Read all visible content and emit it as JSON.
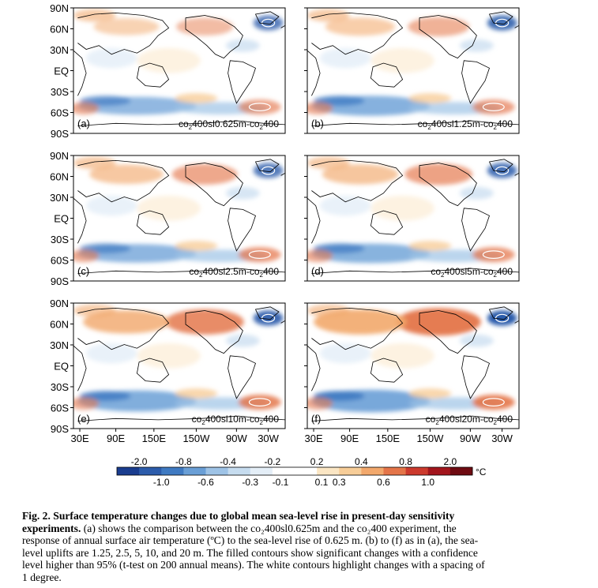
{
  "figure": {
    "lat_labels": [
      "90N",
      "60N",
      "30N",
      "EQ",
      "30S",
      "60S",
      "90S"
    ],
    "lon_labels": [
      "30E",
      "90E",
      "150E",
      "150W",
      "90W",
      "30W"
    ],
    "panels": [
      {
        "label": "(a)",
        "title_parts": [
          "co",
          "2",
          "400sl0.625m-co",
          "2",
          "400"
        ],
        "warm": 0.35,
        "cold": 0.55
      },
      {
        "label": "(b)",
        "title_parts": [
          "co",
          "2",
          "400sl1.25m-co",
          "2",
          "400"
        ],
        "warm": 0.45,
        "cold": 0.75
      },
      {
        "label": "(c)",
        "title_parts": [
          "co",
          "2",
          "400sl2.5m-co",
          "2",
          "400"
        ],
        "warm": 0.55,
        "cold": 0.6
      },
      {
        "label": "(d)",
        "title_parts": [
          "co",
          "2",
          "400sl5m-co",
          "2",
          "400"
        ],
        "warm": 0.6,
        "cold": 0.7
      },
      {
        "label": "(e)",
        "title_parts": [
          "co",
          "2",
          "400sl10m-co",
          "2",
          "400"
        ],
        "warm": 0.85,
        "cold": 0.85
      },
      {
        "label": "(f)",
        "title_parts": [
          "co",
          "2",
          "400sl20m-co",
          "2",
          "400"
        ],
        "warm": 1.0,
        "cold": 1.0
      }
    ],
    "colorbar": {
      "unit": "°C",
      "colors": [
        "#1a3d8f",
        "#2c5cab",
        "#3f7ac2",
        "#6a9fd6",
        "#9ec3e6",
        "#c6dcef",
        "#e4eef7",
        "#ffffff",
        "#ffffff",
        "#fbe6c4",
        "#f7cd98",
        "#f2a86c",
        "#e47549",
        "#cc3a2d",
        "#a3161d",
        "#6f0b12"
      ],
      "top_labels": [
        "-2.0",
        "-0.8",
        "-0.4",
        "-0.2",
        "0.2",
        "0.4",
        "0.8",
        "2.0"
      ],
      "bottom_labels": [
        "-1.0",
        "-0.6",
        "-0.3",
        "-0.1",
        "0.1",
        "0.3",
        "0.6",
        "1.0"
      ]
    }
  },
  "caption": {
    "bold_lines": [
      "Fig. 2. Surface temperature changes due to global mean sea-level rise in present-day sensitivity",
      "experiments."
    ],
    "lines": [
      "(a) shows the comparison between the co₂400sl0.625m and the co₂400 experiment, the",
      "response of annual surface air temperature (ºC) to the sea-level rise of 0.625 m. (b) to (f) as in (a), the sea-",
      "level uplifts are 1.25, 2.5, 5, 10, and 20 m. The filled contours show significant changes with a confidence",
      "level higher than 95% (t-test on 200 annual means). The white contours highlight changes with a spacing of",
      "1 degree."
    ]
  }
}
